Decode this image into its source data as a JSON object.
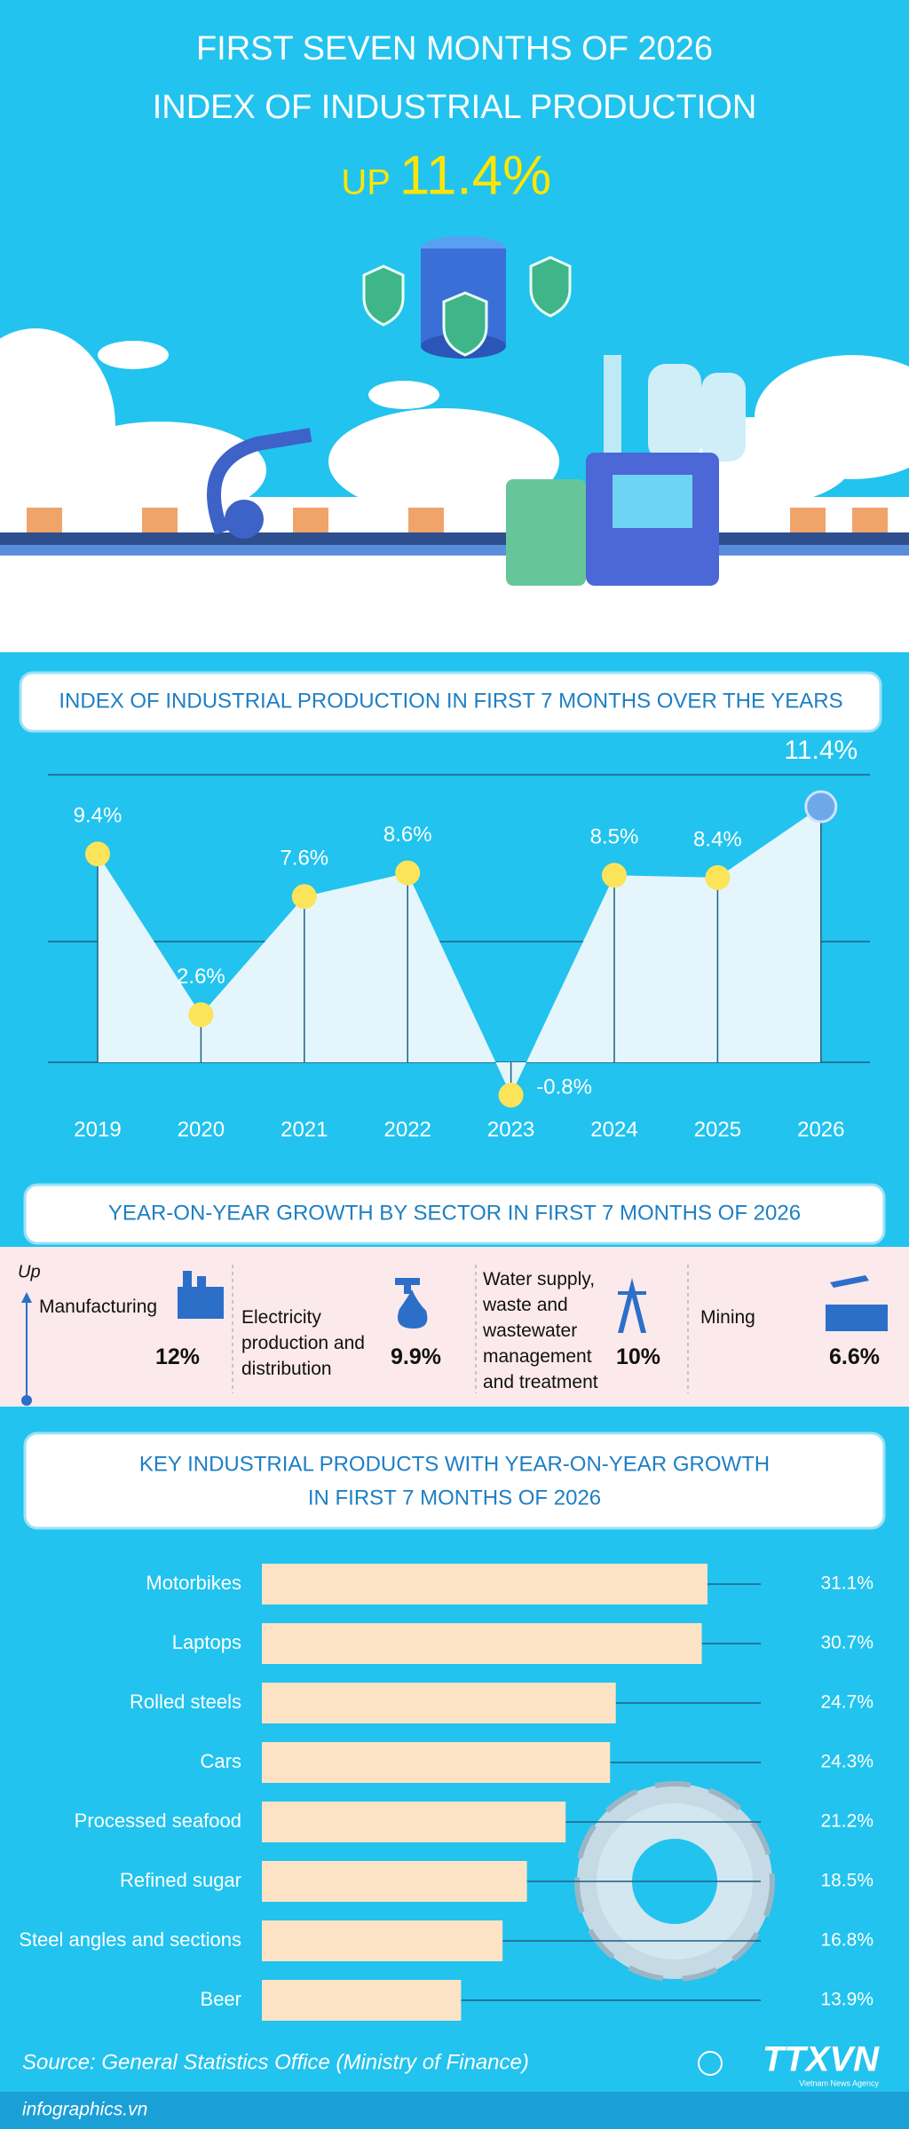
{
  "header": {
    "line1": "FIRST SEVEN MONTHS OF 2026",
    "line2": "INDEX OF INDUSTRIAL PRODUCTION",
    "prefix": "UP",
    "value": "11.4%"
  },
  "sectors": {
    "title": "YEAR-ON-YEAR GROWTH BY SECTOR IN FIRST 7 MONTHS OF 2026",
    "direction": "Up",
    "items": [
      {
        "name": "Manufacturing",
        "value": "12%"
      },
      {
        "name": "Electricity production and distribution",
        "value": "9.9%"
      },
      {
        "name": "Water supply, waste and wastewater management and treatment",
        "value": "10%"
      },
      {
        "name": "Mining",
        "value": "6.6%"
      }
    ]
  },
  "chart_data": [
    {
      "type": "line",
      "title": "INDEX OF INDUSTRIAL PRODUCTION IN FIRST 7 MONTHS OVER THE YEARS",
      "categories": [
        "2019",
        "2020",
        "2021",
        "2022",
        "2023",
        "2024",
        "2025",
        "2026"
      ],
      "values": [
        9.4,
        2.6,
        7.6,
        8.6,
        -0.8,
        8.5,
        8.4,
        11.4
      ],
      "value_labels": [
        "9.4%",
        "2.6%",
        "7.6%",
        "8.6%",
        "-0.8%",
        "8.5%",
        "8.4%",
        "11.4%"
      ],
      "color": "#fbe45a",
      "highlight_color": "#6fa8e8"
    },
    {
      "type": "hbar",
      "title": [
        "KEY INDUSTRIAL PRODUCTS WITH YEAR-ON-YEAR GROWTH",
        "IN FIRST 7 MONTHS OF 2026"
      ],
      "categories": [
        "Motorbikes",
        "Laptops",
        "Rolled steels",
        "Cars",
        "Processed seafood",
        "Refined sugar",
        "Steel angles and sections",
        "Beer"
      ],
      "values": [
        31.1,
        30.7,
        24.7,
        24.3,
        21.2,
        18.5,
        16.8,
        13.9
      ],
      "value_labels": [
        "31.1%",
        "30.7%",
        "24.7%",
        "24.3%",
        "21.2%",
        "18.5%",
        "16.8%",
        "13.9%"
      ],
      "color": "#fde3c6"
    }
  ],
  "footer": {
    "source": "Source: General Statistics Office (Ministry of Finance)",
    "site": "infographics.vn",
    "logo": "TTXVN",
    "agency": "Vietnam News Agency"
  }
}
